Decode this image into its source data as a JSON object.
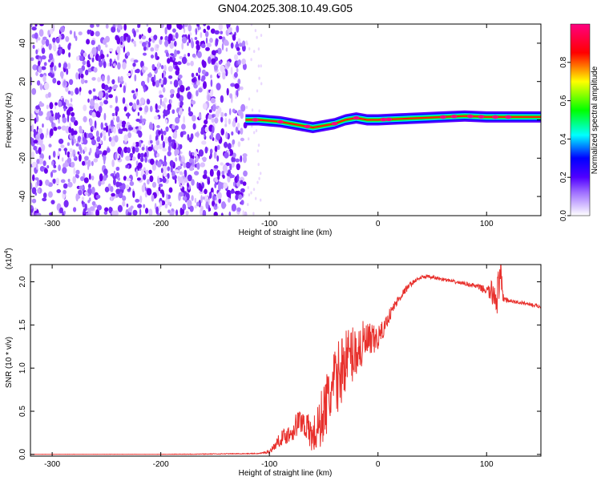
{
  "title": "GN04.2025.308.10.49.G05",
  "chart_data": [
    {
      "type": "heatmap",
      "name": "spectrogram",
      "xlabel": "Height of straight line (km)",
      "ylabel": "Frequency (Hz)",
      "xlim": [
        -320,
        150
      ],
      "ylim": [
        -50,
        50
      ],
      "xticks": [
        -300,
        -200,
        -100,
        0,
        100
      ],
      "xtick_labels": [
        "-300",
        "-200",
        "-100",
        "0",
        "100"
      ],
      "yticks": [
        -40,
        -20,
        0,
        20,
        40
      ],
      "ytick_labels": [
        "-40",
        "-20",
        "0",
        "20",
        "40"
      ],
      "noise_region_x": [
        -320,
        -122
      ],
      "signal_line": {
        "x": [
          -122,
          -110,
          -100,
          -90,
          -80,
          -70,
          -60,
          -50,
          -40,
          -30,
          -20,
          -10,
          0,
          20,
          40,
          60,
          80,
          100,
          120,
          150
        ],
        "frequency": [
          0,
          0,
          -0.5,
          -1,
          -2,
          -3,
          -4,
          -3,
          -2,
          0,
          1,
          0,
          0,
          0.5,
          1,
          1.5,
          2,
          1.5,
          1.5,
          1.5
        ]
      },
      "colorbar": {
        "label": "Normalized spectral amplitude",
        "range": [
          0,
          1
        ],
        "ticks": [
          0.0,
          0.2,
          0.4,
          0.6,
          0.8
        ],
        "tick_labels": [
          "0.0",
          "0.2",
          "0.4",
          "0.6",
          "0.8"
        ],
        "colors": [
          "#ffffff",
          "#6a00ff",
          "#0000ff",
          "#00ffff",
          "#00ff00",
          "#ffff00",
          "#ff0000",
          "#ff0080"
        ]
      }
    },
    {
      "type": "line",
      "name": "snr",
      "xlabel": "Height of straight line (km)",
      "ylabel": "SNR (10 * v/v)",
      "scale_label": "(x10",
      "scale_exponent": "4",
      "scale_close": ")",
      "xlim": [
        -320,
        150
      ],
      "ylim": [
        -0.02,
        2.2
      ],
      "xticks": [
        -300,
        -200,
        -100,
        0,
        100
      ],
      "xtick_labels": [
        "-300",
        "-200",
        "-100",
        "0",
        "100"
      ],
      "yticks": [
        0.0,
        0.5,
        1.0,
        1.5,
        2.0
      ],
      "ytick_labels": [
        "0.0",
        "0.5",
        "1.0",
        "1.5",
        "2.0"
      ],
      "color": "#e8302c",
      "x": [
        -320,
        -200,
        -110,
        -100,
        -95,
        -90,
        -85,
        -80,
        -75,
        -70,
        -65,
        -60,
        -55,
        -50,
        -45,
        -40,
        -35,
        -30,
        -25,
        -20,
        -15,
        -10,
        -5,
        0,
        5,
        10,
        15,
        20,
        25,
        30,
        35,
        40,
        45,
        50,
        60,
        70,
        80,
        90,
        100,
        105,
        110,
        113,
        115,
        120,
        130,
        140,
        150
      ],
      "y": [
        0.0,
        0.0,
        0.01,
        0.03,
        0.1,
        0.18,
        0.22,
        0.25,
        0.35,
        0.4,
        0.3,
        0.2,
        0.3,
        0.5,
        0.65,
        0.8,
        0.95,
        1.1,
        1.15,
        1.2,
        1.25,
        1.3,
        1.3,
        1.35,
        1.45,
        1.6,
        1.72,
        1.82,
        1.9,
        1.97,
        2.02,
        2.05,
        2.06,
        2.05,
        2.03,
        2.0,
        1.98,
        1.95,
        1.9,
        1.87,
        1.85,
        2.0,
        1.82,
        1.78,
        1.76,
        1.74,
        1.71
      ],
      "jitter": [
        0.002,
        0.003,
        0.005,
        0.02,
        0.05,
        0.08,
        0.1,
        0.12,
        0.15,
        0.15,
        0.18,
        0.22,
        0.3,
        0.35,
        0.4,
        0.42,
        0.4,
        0.38,
        0.35,
        0.32,
        0.3,
        0.25,
        0.2,
        0.15,
        0.1,
        0.08,
        0.06,
        0.05,
        0.04,
        0.03,
        0.02,
        0.02,
        0.02,
        0.02,
        0.02,
        0.02,
        0.02,
        0.03,
        0.05,
        0.15,
        0.25,
        0.3,
        0.06,
        0.02,
        0.02,
        0.02,
        0.02
      ]
    }
  ]
}
